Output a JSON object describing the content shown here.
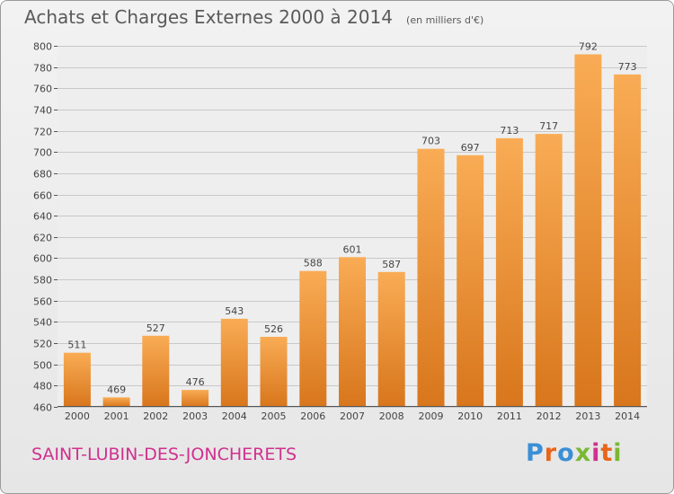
{
  "title": "Achats et Charges Externes 2000 à 2014",
  "subtitle": "(en milliers d'€)",
  "commune": "SAINT-LUBIN-DES-JONCHERETS",
  "logo": {
    "text": "Proxiti",
    "letter_colors": [
      "#3a8fd6",
      "#e8651a",
      "#3a8fd6",
      "#7ab833",
      "#d0308e",
      "#e8651a",
      "#7ab833"
    ]
  },
  "colors": {
    "bar_light": "#f9ac55",
    "bar_dark": "#d8761c",
    "title_text": "#5a5a5a",
    "commune_text": "#d0308e"
  },
  "chart_data": {
    "type": "bar",
    "categories": [
      "2000",
      "2001",
      "2002",
      "2003",
      "2004",
      "2005",
      "2006",
      "2007",
      "2008",
      "2009",
      "2010",
      "2011",
      "2012",
      "2013",
      "2014"
    ],
    "values": [
      511,
      469,
      527,
      476,
      543,
      526,
      588,
      601,
      587,
      703,
      697,
      713,
      717,
      792,
      773
    ],
    "data_labels": [
      "511",
      "469",
      "527",
      "476",
      "543",
      "526",
      "588",
      "601",
      "587",
      "703",
      "697",
      "713",
      "717",
      "792",
      "773"
    ],
    "title": "Achats et Charges Externes 2000 à 2014",
    "xlabel": "",
    "ylabel": "",
    "ylim": [
      460,
      800
    ],
    "yticks": [
      460,
      480,
      500,
      520,
      540,
      560,
      580,
      600,
      620,
      640,
      660,
      680,
      700,
      720,
      740,
      760,
      780,
      800
    ],
    "ytick_labels": [
      "460",
      "480",
      "500",
      "520",
      "540",
      "560",
      "580",
      "600",
      "620",
      "640",
      "660",
      "680",
      "700",
      "720",
      "740",
      "760",
      "780",
      "800"
    ],
    "grid": true
  }
}
